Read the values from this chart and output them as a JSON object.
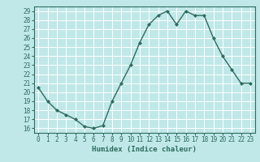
{
  "x": [
    0,
    1,
    2,
    3,
    4,
    5,
    6,
    7,
    8,
    9,
    10,
    11,
    12,
    13,
    14,
    15,
    16,
    17,
    18,
    19,
    20,
    21,
    22,
    23
  ],
  "y": [
    20.5,
    19.0,
    18.0,
    17.5,
    17.0,
    16.2,
    16.0,
    16.3,
    19.0,
    21.0,
    23.0,
    25.5,
    27.5,
    28.5,
    29.0,
    27.5,
    29.0,
    28.5,
    28.5,
    26.0,
    24.0,
    22.5,
    21.0,
    21.0
  ],
  "line_color": "#2e6b5e",
  "marker": "D",
  "marker_size": 2.0,
  "bg_color": "#c0e8e8",
  "grid_color": "#ffffff",
  "tick_color": "#2e6b5e",
  "label_color": "#2e6b5e",
  "xlabel": "Humidex (Indice chaleur)",
  "ylim_min": 15.5,
  "ylim_max": 29.5,
  "yticks": [
    16,
    17,
    18,
    19,
    20,
    21,
    22,
    23,
    24,
    25,
    26,
    27,
    28,
    29
  ],
  "xticks": [
    0,
    1,
    2,
    3,
    4,
    5,
    6,
    7,
    8,
    9,
    10,
    11,
    12,
    13,
    14,
    15,
    16,
    17,
    18,
    19,
    20,
    21,
    22,
    23
  ],
  "xlim_min": -0.5,
  "xlim_max": 23.5,
  "tick_fontsize": 5.5,
  "xlabel_fontsize": 6.5,
  "linewidth": 1.0
}
